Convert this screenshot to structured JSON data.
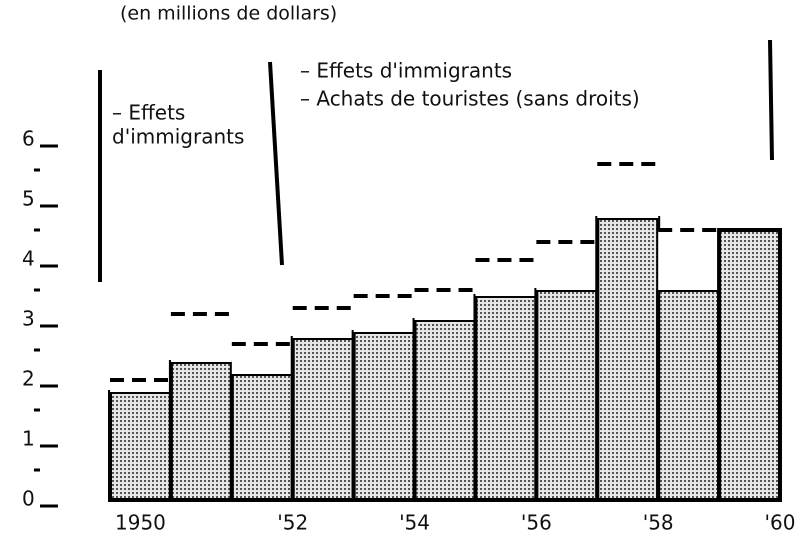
{
  "chart_data": {
    "type": "bar",
    "stacked": true,
    "title": "(en millions de dollars)",
    "annotations": [
      {
        "lines": [
          "– Effets",
          "d'immigrants"
        ]
      },
      {
        "lines": [
          "– Effets d'immigrants",
          "– Achats de touristes (sans droits)"
        ]
      }
    ],
    "categories": [
      "1950",
      null,
      "'52",
      null,
      "'54",
      null,
      "'56",
      null,
      "'58",
      null,
      "'60"
    ],
    "series": [
      {
        "color": "#bdbdbd",
        "pattern": "dotted",
        "values": [
          1.8,
          2.3,
          2.1,
          2.7,
          2.8,
          3.0,
          3.4,
          3.5,
          4.7,
          3.5,
          4.5
        ]
      },
      {
        "color": "#ffffff",
        "outline": "dashed",
        "values": [
          0.2,
          0.8,
          0.5,
          0.5,
          0.6,
          0.5,
          0.6,
          0.8,
          0.9,
          1.0,
          0
        ]
      }
    ],
    "ylim": [
      0,
      6
    ],
    "yticks": [
      0,
      1,
      2,
      3,
      4,
      5,
      6
    ],
    "yminorticks": [
      0.5,
      1.5,
      2.5,
      3.5,
      4.5,
      5.5
    ]
  }
}
